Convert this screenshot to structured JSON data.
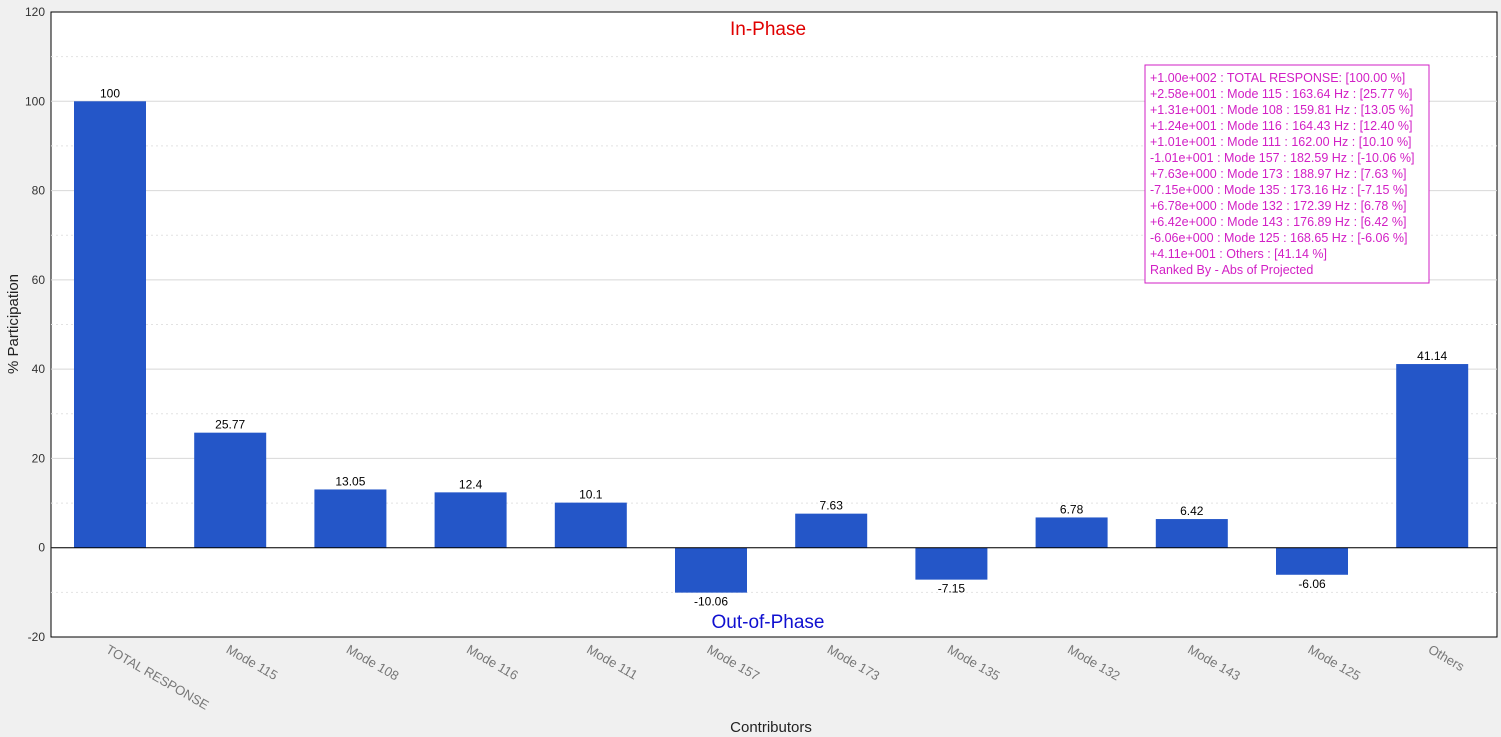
{
  "chart_data": {
    "type": "bar",
    "title_top": "In-Phase",
    "title_bottom": "Out-of-Phase",
    "xlabel": "Contributors",
    "ylabel": "% Participation",
    "ylim": [
      -20,
      120
    ],
    "yticks": [
      -20,
      0,
      20,
      40,
      60,
      80,
      100,
      120
    ],
    "grid": true,
    "legend_placement": "top-right",
    "colors": {
      "bar": "#2456c8",
      "title_top": "#e00000",
      "title_bottom": "#1010d0",
      "legend": "#d21fc5"
    },
    "categories": [
      "TOTAL RESPONSE",
      "Mode    115",
      "Mode    108",
      "Mode    116",
      "Mode    111",
      "Mode    157",
      "Mode    173",
      "Mode    135",
      "Mode    132",
      "Mode    143",
      "Mode    125",
      "Others"
    ],
    "values": [
      100,
      25.77,
      13.05,
      12.4,
      10.1,
      -10.06,
      7.63,
      -7.15,
      6.78,
      6.42,
      -6.06,
      41.14
    ],
    "value_labels": [
      "100",
      "25.77",
      "13.05",
      "12.4",
      "10.1",
      "-10.06",
      "7.63",
      "-7.15",
      "6.78",
      "6.42",
      "-6.06",
      "41.14"
    ],
    "legend_lines": [
      "+1.00e+002 : TOTAL RESPONSE: [100.00 %]",
      "+2.58e+001 : Mode  115   : 163.64 Hz : [25.77 %]",
      "+1.31e+001 : Mode  108   : 159.81 Hz : [13.05 %]",
      "+1.24e+001 : Mode  116   : 164.43 Hz : [12.40 %]",
      "+1.01e+001 : Mode  111   : 162.00 Hz : [10.10 %]",
      "-1.01e+001 : Mode  157   : 182.59 Hz : [-10.06 %]",
      "+7.63e+000 : Mode  173   : 188.97 Hz : [7.63 %]",
      "-7.15e+000 : Mode  135   : 173.16 Hz : [-7.15 %]",
      "+6.78e+000 : Mode  132   : 172.39 Hz : [6.78 %]",
      "+6.42e+000 : Mode  143   : 176.89 Hz : [6.42 %]",
      "-6.06e+000 : Mode  125   : 168.65 Hz : [-6.06 %]",
      "+4.11e+001 : Others      : [41.14 %]",
      "Ranked By - Abs of Projected"
    ]
  }
}
